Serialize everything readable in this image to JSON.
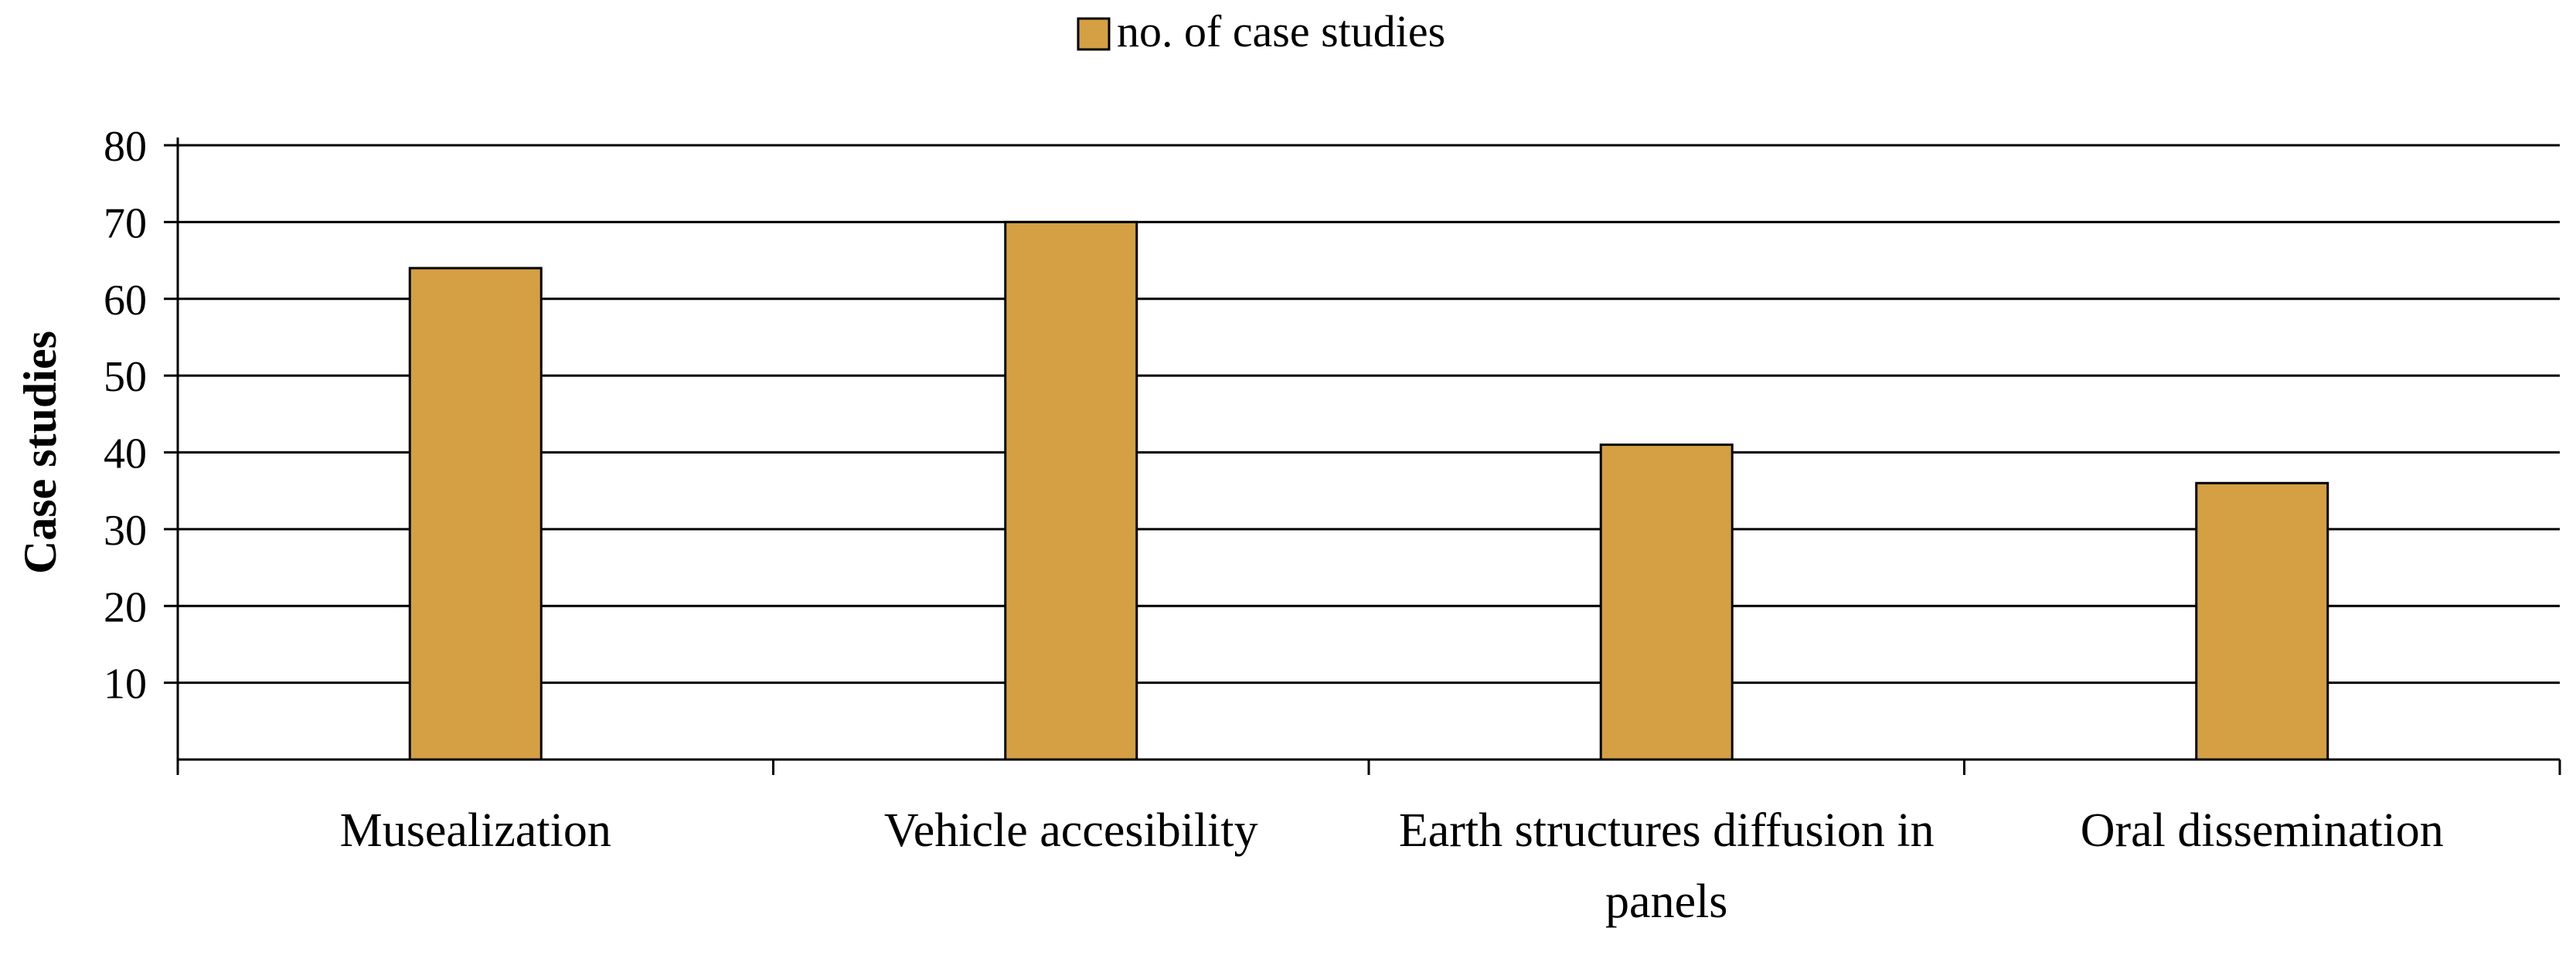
{
  "chart_data": {
    "type": "bar",
    "categories": [
      [
        "Musealization"
      ],
      [
        "Vehicle accesibility"
      ],
      [
        "Earth structures diffusion in",
        "panels"
      ],
      [
        "Oral dissemination"
      ]
    ],
    "series": [
      {
        "name": "no. of case studies",
        "values": [
          64,
          70,
          41,
          36
        ],
        "color": "#D4A043"
      }
    ],
    "title": "",
    "xlabel": "",
    "ylabel": "Case studies",
    "ylim": [
      0,
      80
    ],
    "yticks": [
      10,
      20,
      30,
      40,
      50,
      60,
      70,
      80
    ],
    "grid": true,
    "legend_position": "top-center",
    "colors": {
      "bar_fill": "#D4A043",
      "bar_stroke": "#000000",
      "grid": "#000000"
    }
  }
}
